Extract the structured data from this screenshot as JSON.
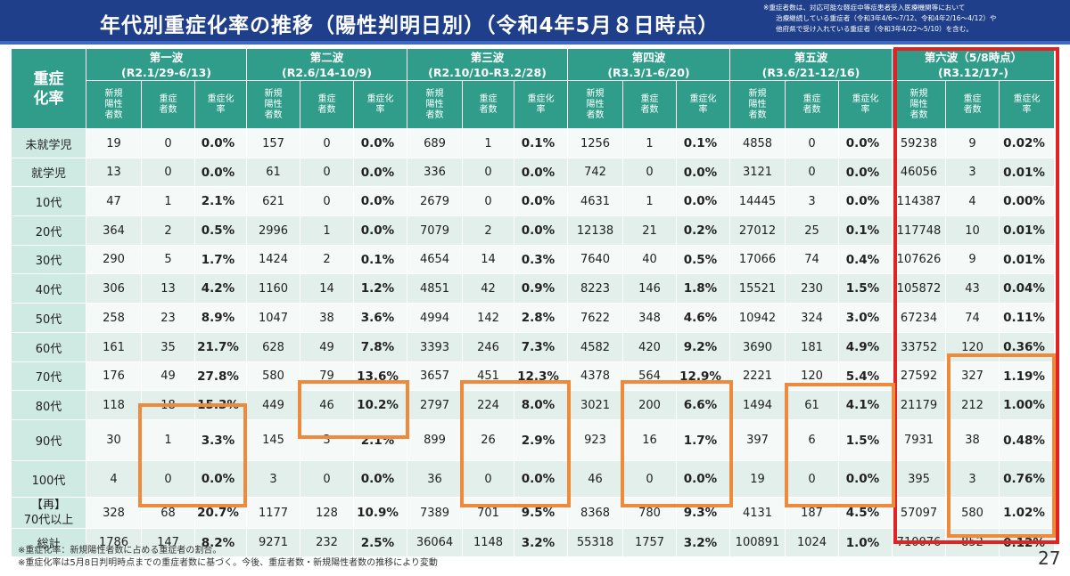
{
  "title": "年代別重症化率の推移（陽性判明日別）（令和4年5月８日時点）",
  "header_note": [
    "※重症者数は、対応可能な軽症中等症患者受入医療機関等において",
    "治療継続している重症者（令和3年4/6〜7/12、令和4年2/16〜4/12）や",
    "他府県で受け入れている重症者（令和3年4/22〜5/10）を含む。"
  ],
  "corner_label": "重症\n化率",
  "waves": [
    {
      "name": "第一波",
      "period": "(R2.1/29-6/13)"
    },
    {
      "name": "第二波",
      "period": "(R2.6/14-10/9)"
    },
    {
      "name": "第三波",
      "period": "(R2.10/10-R3.2/28)"
    },
    {
      "name": "第四波",
      "period": "(R3.3/1-6/20)"
    },
    {
      "name": "第五波",
      "period": "(R3.6/21-12/16)"
    },
    {
      "name": "第六波（5/8時点）",
      "period": "(R3.12/17-)"
    }
  ],
  "sub_headers": [
    "新規\n陽性\n者数",
    "重症\n者数",
    "重症化\n率"
  ],
  "rows": [
    {
      "label": "未就学児",
      "cells": [
        [
          "19",
          "0",
          "0.0%"
        ],
        [
          "157",
          "0",
          "0.0%"
        ],
        [
          "689",
          "1",
          "0.1%"
        ],
        [
          "1256",
          "1",
          "0.1%"
        ],
        [
          "4858",
          "0",
          "0.0%"
        ],
        [
          "59238",
          "9",
          "0.02%"
        ]
      ]
    },
    {
      "label": "就学児",
      "cells": [
        [
          "13",
          "0",
          "0.0%"
        ],
        [
          "61",
          "0",
          "0.0%"
        ],
        [
          "336",
          "0",
          "0.0%"
        ],
        [
          "742",
          "0",
          "0.0%"
        ],
        [
          "3121",
          "0",
          "0.0%"
        ],
        [
          "46056",
          "3",
          "0.01%"
        ]
      ]
    },
    {
      "label": "10代",
      "cells": [
        [
          "47",
          "1",
          "2.1%"
        ],
        [
          "621",
          "0",
          "0.0%"
        ],
        [
          "2679",
          "0",
          "0.0%"
        ],
        [
          "4631",
          "1",
          "0.0%"
        ],
        [
          "14445",
          "3",
          "0.0%"
        ],
        [
          "114387",
          "4",
          "0.00%"
        ]
      ]
    },
    {
      "label": "20代",
      "cells": [
        [
          "364",
          "2",
          "0.5%"
        ],
        [
          "2996",
          "1",
          "0.0%"
        ],
        [
          "7079",
          "2",
          "0.0%"
        ],
        [
          "12138",
          "21",
          "0.2%"
        ],
        [
          "27012",
          "25",
          "0.1%"
        ],
        [
          "117748",
          "10",
          "0.01%"
        ]
      ]
    },
    {
      "label": "30代",
      "cells": [
        [
          "290",
          "5",
          "1.7%"
        ],
        [
          "1424",
          "2",
          "0.1%"
        ],
        [
          "4654",
          "14",
          "0.3%"
        ],
        [
          "7640",
          "40",
          "0.5%"
        ],
        [
          "17066",
          "74",
          "0.4%"
        ],
        [
          "107626",
          "9",
          "0.01%"
        ]
      ]
    },
    {
      "label": "40代",
      "cells": [
        [
          "306",
          "13",
          "4.2%"
        ],
        [
          "1160",
          "14",
          "1.2%"
        ],
        [
          "4851",
          "42",
          "0.9%"
        ],
        [
          "8223",
          "146",
          "1.8%"
        ],
        [
          "15521",
          "230",
          "1.5%"
        ],
        [
          "105872",
          "43",
          "0.04%"
        ]
      ]
    },
    {
      "label": "50代",
      "cells": [
        [
          "258",
          "23",
          "8.9%"
        ],
        [
          "1047",
          "38",
          "3.6%"
        ],
        [
          "4994",
          "142",
          "2.8%"
        ],
        [
          "7622",
          "348",
          "4.6%"
        ],
        [
          "10942",
          "324",
          "3.0%"
        ],
        [
          "67234",
          "74",
          "0.11%"
        ]
      ]
    },
    {
      "label": "60代",
      "cells": [
        [
          "161",
          "35",
          "21.7%"
        ],
        [
          "628",
          "49",
          "7.8%"
        ],
        [
          "3393",
          "246",
          "7.3%"
        ],
        [
          "4582",
          "420",
          "9.2%"
        ],
        [
          "3690",
          "181",
          "4.9%"
        ],
        [
          "33752",
          "120",
          "0.36%"
        ]
      ]
    },
    {
      "label": "70代",
      "cells": [
        [
          "176",
          "49",
          "27.8%"
        ],
        [
          "580",
          "79",
          "13.6%"
        ],
        [
          "3657",
          "451",
          "12.3%"
        ],
        [
          "4378",
          "564",
          "12.9%"
        ],
        [
          "2221",
          "120",
          "5.4%"
        ],
        [
          "27592",
          "327",
          "1.19%"
        ]
      ]
    },
    {
      "label": "80代",
      "cells": [
        [
          "118",
          "18",
          "15.3%"
        ],
        [
          "449",
          "46",
          "10.2%"
        ],
        [
          "2797",
          "224",
          "8.0%"
        ],
        [
          "3021",
          "200",
          "6.6%"
        ],
        [
          "1494",
          "61",
          "4.1%"
        ],
        [
          "21179",
          "212",
          "1.00%"
        ]
      ]
    },
    {
      "label": "90代",
      "cells": [
        [
          "30",
          "1",
          "3.3%"
        ],
        [
          "145",
          "3",
          "2.1%"
        ],
        [
          "899",
          "26",
          "2.9%"
        ],
        [
          "923",
          "16",
          "1.7%"
        ],
        [
          "397",
          "6",
          "1.5%"
        ],
        [
          "7931",
          "38",
          "0.48%"
        ]
      ]
    },
    {
      "label": "100代",
      "cells": [
        [
          "4",
          "0",
          "0.0%"
        ],
        [
          "3",
          "0",
          "0.0%"
        ],
        [
          "36",
          "0",
          "0.0%"
        ],
        [
          "46",
          "0",
          "0.0%"
        ],
        [
          "19",
          "0",
          "0.0%"
        ],
        [
          "395",
          "3",
          "0.76%"
        ]
      ]
    },
    {
      "label": "【再】\n70代以上",
      "cells": [
        [
          "328",
          "68",
          "20.7%"
        ],
        [
          "1177",
          "128",
          "10.9%"
        ],
        [
          "7389",
          "701",
          "9.5%"
        ],
        [
          "8368",
          "780",
          "9.3%"
        ],
        [
          "4131",
          "187",
          "4.5%"
        ],
        [
          "57097",
          "580",
          "1.02%"
        ]
      ]
    },
    {
      "label": "総計",
      "cells": [
        [
          "1786",
          "147",
          "8.2%"
        ],
        [
          "9271",
          "232",
          "2.5%"
        ],
        [
          "36064",
          "1148",
          "3.2%"
        ],
        [
          "55318",
          "1757",
          "3.2%"
        ],
        [
          "100891",
          "1024",
          "1.0%"
        ],
        [
          "710076",
          "852",
          "0.12%"
        ]
      ]
    }
  ],
  "footnotes": [
    "※重症化率：新規陽性者数に占める重症者の割合。",
    "※重症化率は5月8日判明時点までの重症者数に基づく。今後、重症者数・新規陽性者数の推移により変動"
  ],
  "page_number": "27",
  "colors": {
    "header_bg": "#1f3f8a",
    "table_head": "#2f9d8a",
    "row_label_bg": "#cfeae3",
    "cell_bg": "#e3efeb",
    "highlight_orange": "#ee8a3c",
    "highlight_red": "#e02424"
  }
}
